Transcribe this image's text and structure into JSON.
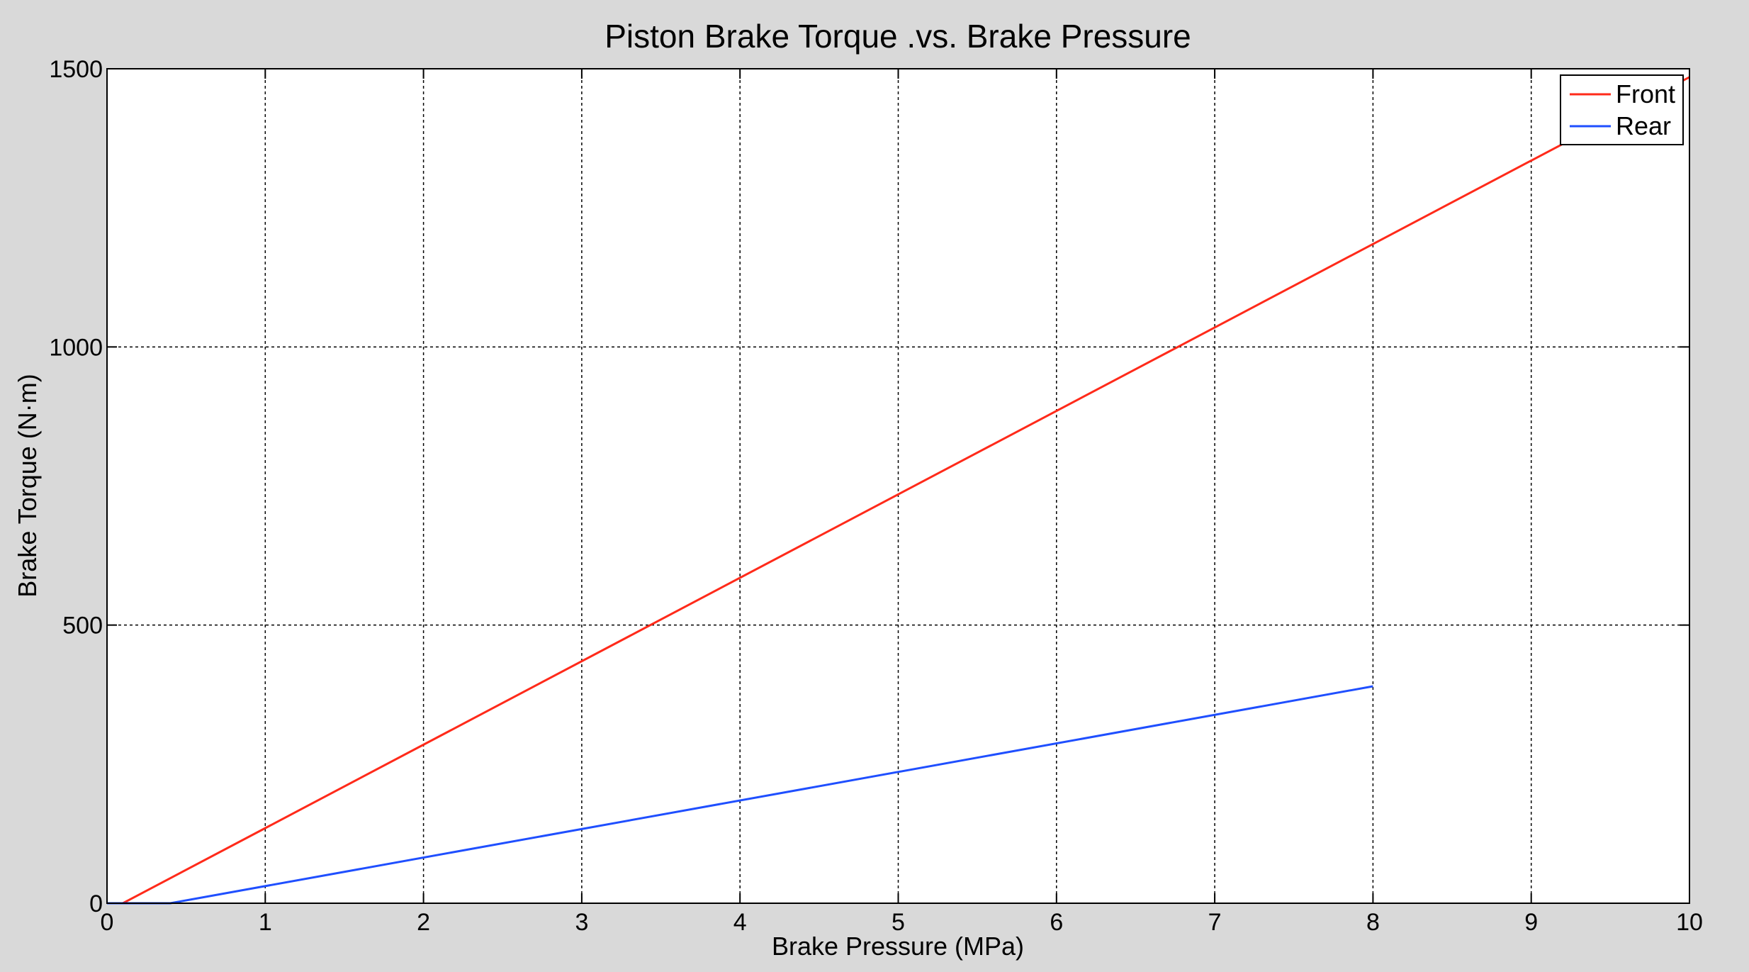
{
  "chart_data": {
    "type": "line",
    "title": "Piston Brake Torque .vs. Brake Pressure",
    "xlabel": "Brake Pressure (MPa)",
    "ylabel": "Brake Torque (N·m)",
    "xlim": [
      0,
      10
    ],
    "ylim": [
      0,
      1500
    ],
    "xticks": [
      0,
      1,
      2,
      3,
      4,
      5,
      6,
      7,
      8,
      9,
      10
    ],
    "yticks": [
      0,
      500,
      1000,
      1500
    ],
    "grid": true,
    "legend_position": "top-right",
    "background_color": "#d9d9d9",
    "plot_background_color": "#ffffff",
    "series": [
      {
        "name": "Front",
        "color": "#ff2a1a",
        "x": [
          0,
          0.1,
          10
        ],
        "y": [
          0,
          0,
          1485
        ]
      },
      {
        "name": "Rear",
        "color": "#1f4fff",
        "x": [
          0,
          0.4,
          8
        ],
        "y": [
          0,
          0,
          390
        ]
      }
    ]
  }
}
